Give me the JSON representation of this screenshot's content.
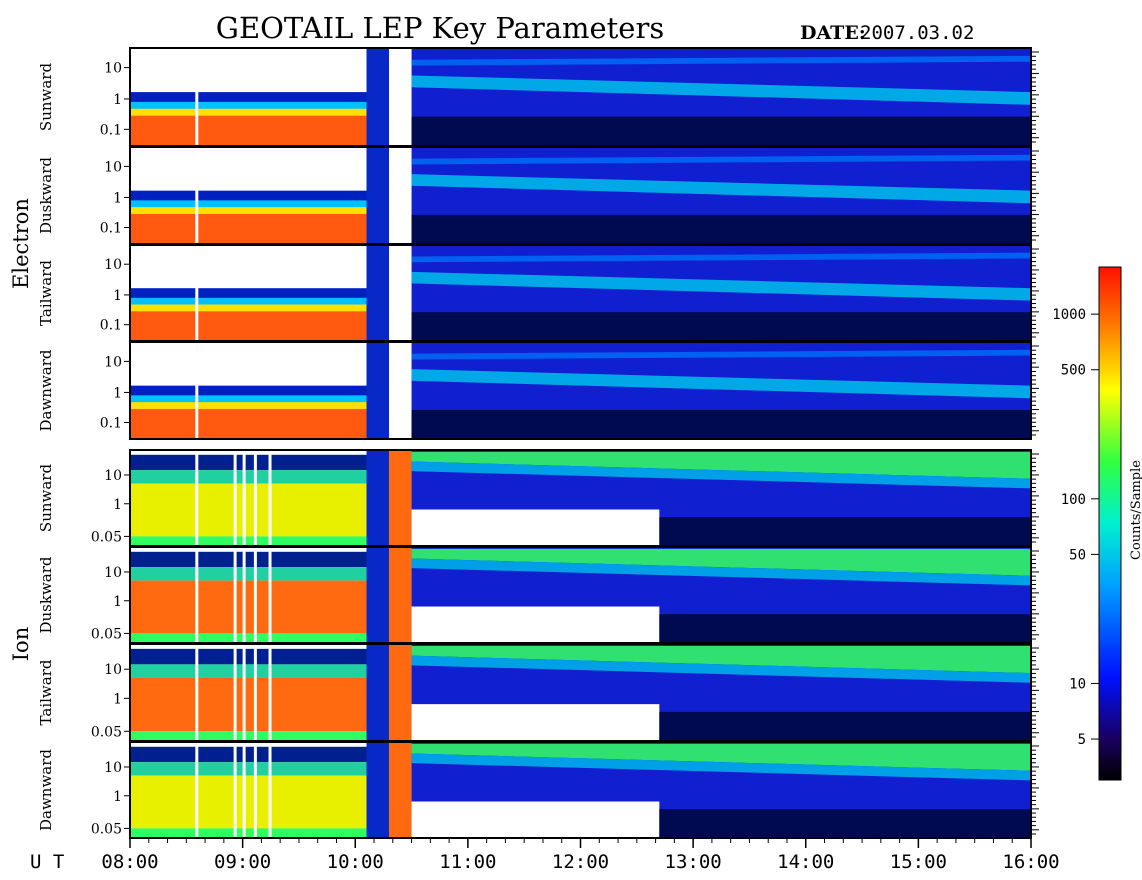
{
  "title": "GEOTAIL LEP Key Parameters",
  "date_label": "DATE:",
  "date_value": "2007.03.02",
  "ut_label": "U T",
  "chart_data": {
    "type": "heatmap",
    "title": "GEOTAIL LEP Key Parameters",
    "x_axis": {
      "label": "U T",
      "ticks": [
        "08:00",
        "09:00",
        "10:00",
        "11:00",
        "12:00",
        "13:00",
        "14:00",
        "15:00",
        "16:00"
      ],
      "range_hours": [
        8,
        16
      ]
    },
    "colorbar": {
      "label": "Counts/Sample",
      "scale": "log",
      "ticks": [
        "5",
        "10",
        "50",
        "100",
        "500",
        "1000"
      ],
      "tick_values": [
        5,
        10,
        50,
        100,
        500,
        1000
      ],
      "range": [
        3,
        1800
      ]
    },
    "groups": [
      {
        "name": "Electron",
        "panels": [
          {
            "name": "Sunward",
            "y_ticks": [
              "10",
              "1",
              "0.1"
            ]
          },
          {
            "name": "Duskward",
            "y_ticks": [
              "10",
              "1",
              "0.1"
            ]
          },
          {
            "name": "Tailward",
            "y_ticks": [
              "10",
              "1",
              "0.1"
            ]
          },
          {
            "name": "Dawnward",
            "y_ticks": [
              "10",
              "1",
              "0.1"
            ]
          }
        ]
      },
      {
        "name": "Ion",
        "panels": [
          {
            "name": "Sunward",
            "y_ticks": [
              "10",
              "1",
              "0.05"
            ]
          },
          {
            "name": "Duskward",
            "y_ticks": [
              "10",
              "1",
              "0.05"
            ]
          },
          {
            "name": "Tailward",
            "y_ticks": [
              "10",
              "1",
              "0.05"
            ]
          },
          {
            "name": "Dawnward",
            "y_ticks": [
              "10",
              "1",
              "0.05"
            ]
          }
        ]
      }
    ]
  }
}
